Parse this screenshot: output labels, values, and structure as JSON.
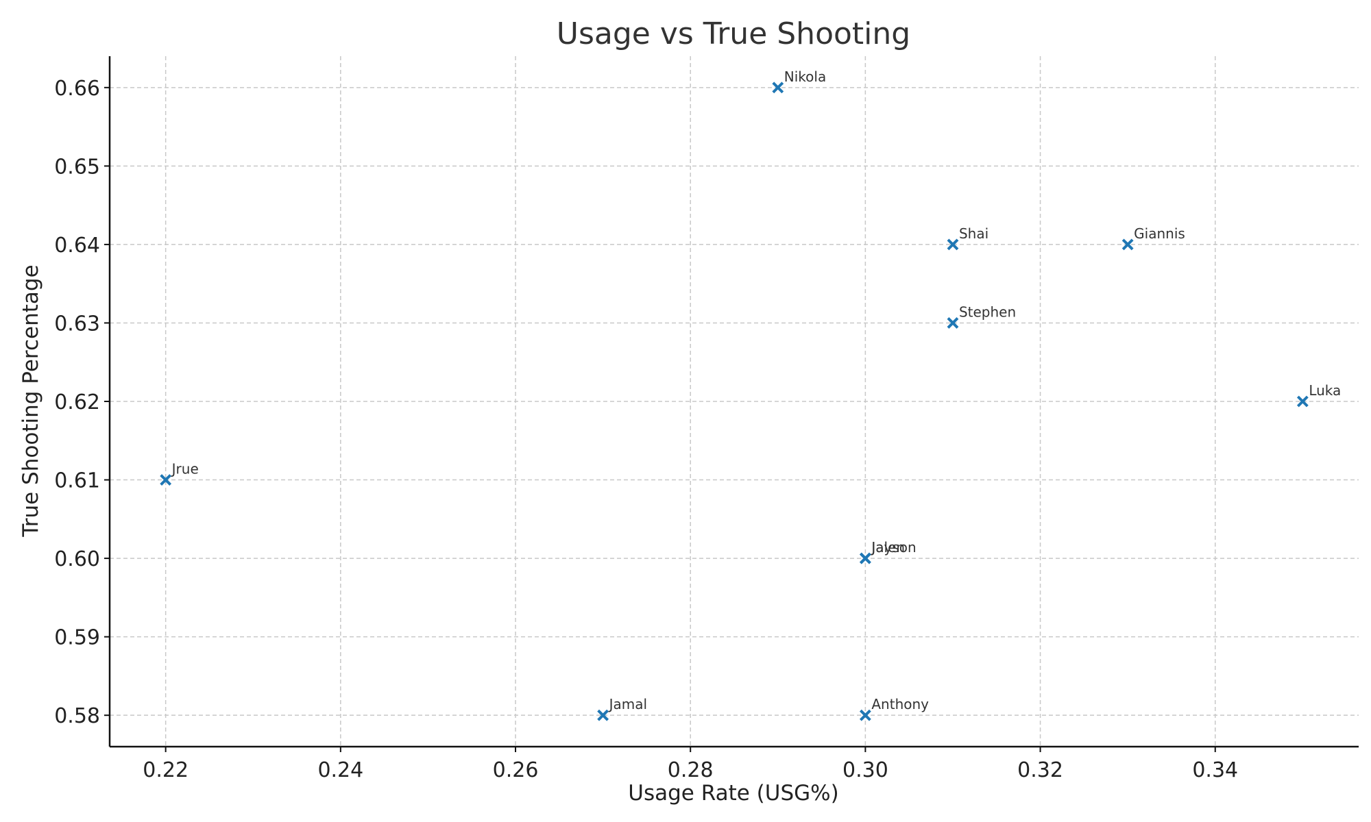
{
  "chart_data": {
    "type": "scatter",
    "title": "Usage vs True Shooting",
    "xlabel": "Usage Rate (USG%)",
    "ylabel": "True Shooting Percentage",
    "xlim": [
      0.2136,
      0.3564
    ],
    "ylim": [
      0.576,
      0.664
    ],
    "x_ticks": [
      "0.22",
      "0.24",
      "0.26",
      "0.28",
      "0.30",
      "0.32",
      "0.34"
    ],
    "x_tick_values": [
      0.22,
      0.24,
      0.26,
      0.28,
      0.3,
      0.32,
      0.34
    ],
    "y_ticks": [
      "0.58",
      "0.59",
      "0.60",
      "0.61",
      "0.62",
      "0.63",
      "0.64",
      "0.65",
      "0.66"
    ],
    "y_tick_values": [
      0.58,
      0.59,
      0.6,
      0.61,
      0.62,
      0.63,
      0.64,
      0.65,
      0.66
    ],
    "grid": true,
    "marker": "x",
    "color": "#1f77b4",
    "points": [
      {
        "label": "Nikola",
        "x": 0.29,
        "y": 0.66
      },
      {
        "label": "Shai",
        "x": 0.31,
        "y": 0.64
      },
      {
        "label": "Giannis",
        "x": 0.33,
        "y": 0.64
      },
      {
        "label": "Stephen",
        "x": 0.31,
        "y": 0.63
      },
      {
        "label": "Luka",
        "x": 0.35,
        "y": 0.62
      },
      {
        "label": "Jrue",
        "x": 0.22,
        "y": 0.61
      },
      {
        "label": "Jalen",
        "x": 0.3,
        "y": 0.6
      },
      {
        "label": "Jayson",
        "x": 0.3,
        "y": 0.6
      },
      {
        "label": "Jamal",
        "x": 0.27,
        "y": 0.58
      },
      {
        "label": "Anthony",
        "x": 0.3,
        "y": 0.58
      }
    ]
  }
}
